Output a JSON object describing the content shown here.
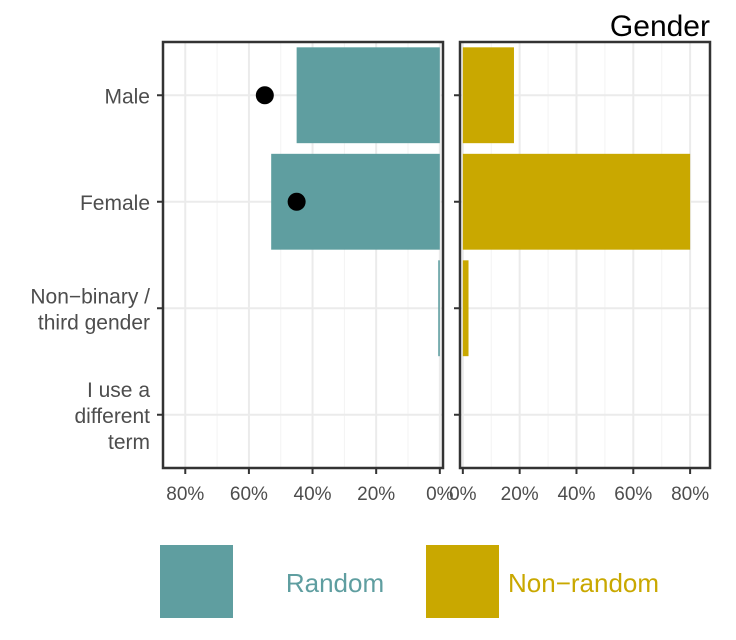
{
  "chart_data": {
    "type": "bar",
    "title": "Gender",
    "categories": [
      "Male",
      "Female",
      "Non−binary /\nthird gender",
      "I use a\ndifferent\nterm"
    ],
    "panels": [
      {
        "name": "Random",
        "direction": "reversed",
        "color": "#5f9ea0",
        "values": [
          0.45,
          0.53,
          0.005,
          0.0
        ],
        "points": [
          0.55,
          0.45,
          null,
          null
        ],
        "point_color": "#000000",
        "xlim": [
          0.87,
          -0.01
        ],
        "xticks": [
          0.8,
          0.6,
          0.4,
          0.2,
          0.0
        ],
        "xtick_labels": [
          "80%",
          "60%",
          "40%",
          "20%",
          "0%"
        ]
      },
      {
        "name": "Non−random",
        "direction": "normal",
        "color": "#c9a800",
        "values": [
          0.18,
          0.8,
          0.02,
          0.0
        ],
        "xlim": [
          -0.01,
          0.87
        ],
        "xticks": [
          0.0,
          0.2,
          0.4,
          0.6,
          0.8
        ],
        "xtick_labels": [
          "0%",
          "20%",
          "40%",
          "60%",
          "80%"
        ]
      }
    ],
    "legend": {
      "placement": "bottom",
      "items": [
        {
          "label": "Random",
          "color": "#5f9ea0"
        },
        {
          "label": "Non−random",
          "color": "#c9a800"
        }
      ]
    },
    "grid": true
  }
}
